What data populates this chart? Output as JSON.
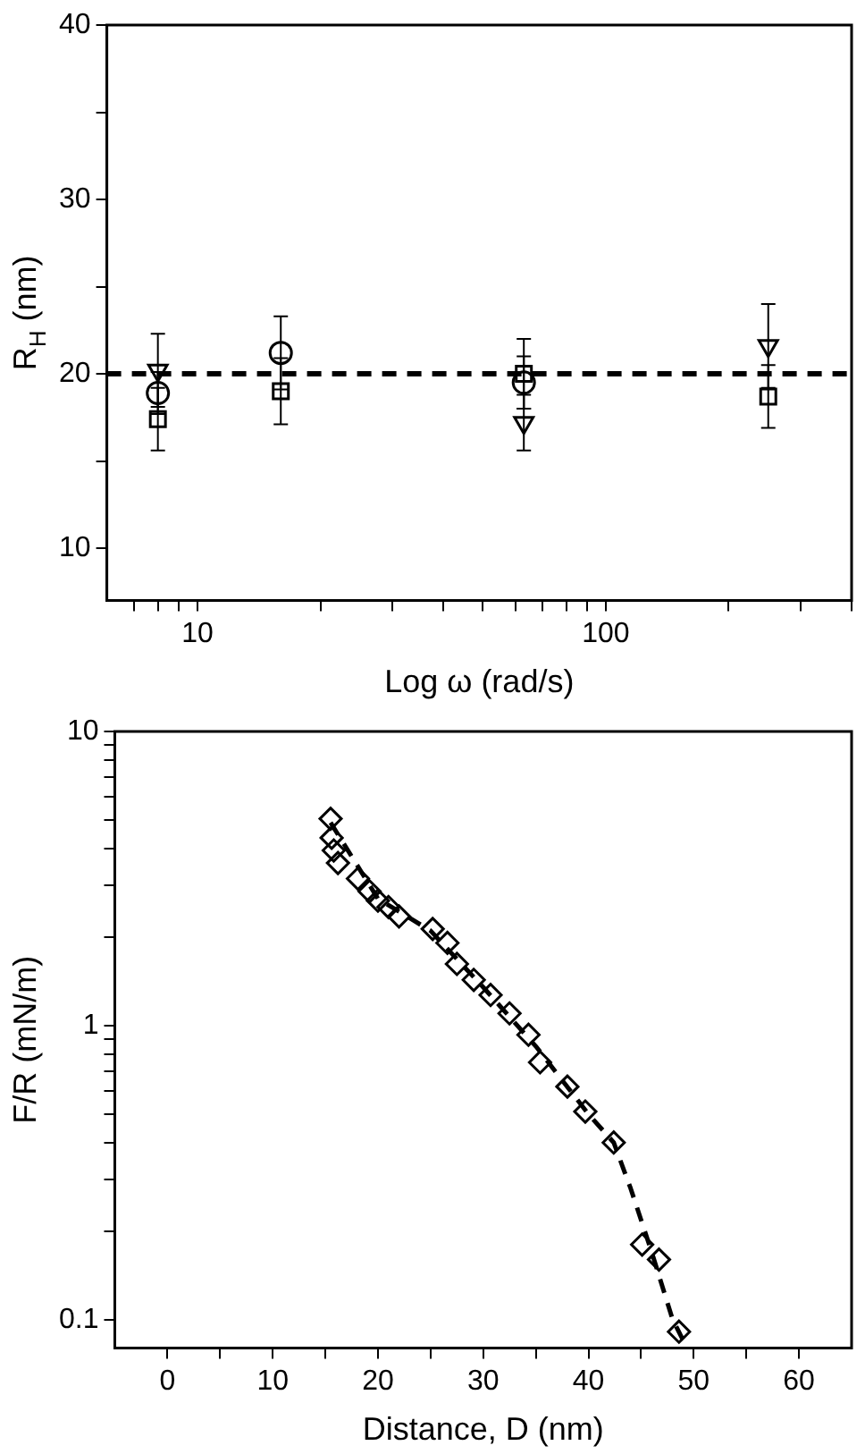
{
  "chart_data": [
    {
      "type": "scatter",
      "xlabel": "Log ω (rad/s)",
      "ylabel": "R$_{H}$ (nm)",
      "log": "x",
      "xlim": [
        6,
        400
      ],
      "ylim": [
        7,
        40
      ],
      "xticks": [
        {
          "value": 7,
          "label": null
        },
        {
          "value": 8,
          "label": null
        },
        {
          "value": 9,
          "label": null
        },
        10,
        {
          "value": 20,
          "label": null
        },
        {
          "value": 30,
          "label": null
        },
        {
          "value": 40,
          "label": null
        },
        {
          "value": 50,
          "label": null
        },
        {
          "value": 60,
          "label": null
        },
        {
          "value": 70,
          "label": null
        },
        {
          "value": 80,
          "label": null
        },
        {
          "value": 90,
          "label": null
        },
        100,
        {
          "value": 200,
          "label": null
        },
        {
          "value": 300,
          "label": null
        },
        {
          "value": 400,
          "label": null
        }
      ],
      "yticks": [
        10,
        {
          "value": 15,
          "label": null
        },
        20,
        {
          "value": 25,
          "label": null
        },
        30,
        {
          "value": 35,
          "label": null
        },
        40
      ],
      "grid": false,
      "legend": false,
      "series": [
        {
          "color": "#000000",
          "marker": "circle",
          "x": [
            8,
            16,
            63
          ],
          "values": [
            18.9,
            21.2,
            19.5
          ],
          "errors": [
            1.2,
            2.1,
            1.5
          ]
        },
        {
          "color": "#000000",
          "marker": "square",
          "x": [
            8,
            16,
            63,
            250
          ],
          "values": [
            17.4,
            19.0,
            20.0,
            18.7
          ],
          "errors": [
            1.8,
            1.9,
            2.0,
            1.8
          ]
        },
        {
          "color": "#000000",
          "marker": "triangle",
          "x": [
            8,
            63,
            250
          ],
          "values": [
            20.2,
            17.2,
            21.6
          ],
          "errors": [
            2.1,
            1.6,
            2.4
          ]
        }
      ],
      "ref_lines": [
        {
          "axis": "y",
          "value": 20,
          "color": "#000000",
          "line_style": "dashed"
        }
      ]
    },
    {
      "type": "scatter",
      "xlabel": "Distance, D (nm)",
      "ylabel": "F/R (mN/m)",
      "log": "y",
      "xlim": [
        -5,
        65
      ],
      "ylim": [
        0.08,
        10
      ],
      "xticks": [
        0,
        {
          "value": 5,
          "label": null
        },
        10,
        {
          "value": 15,
          "label": null
        },
        20,
        {
          "value": 25,
          "label": null
        },
        30,
        {
          "value": 35,
          "label": null
        },
        40,
        {
          "value": 45,
          "label": null
        },
        50,
        {
          "value": 55,
          "label": null
        },
        60
      ],
      "yticks": [
        {
          "value": 0.1,
          "label": "0.1"
        },
        {
          "value": 0.2,
          "label": null
        },
        {
          "value": 0.3,
          "label": null
        },
        {
          "value": 0.4,
          "label": null
        },
        {
          "value": 0.5,
          "label": null
        },
        {
          "value": 0.6,
          "label": null
        },
        {
          "value": 0.7,
          "label": null
        },
        {
          "value": 0.8,
          "label": null
        },
        {
          "value": 0.9,
          "label": null
        },
        1,
        {
          "value": 2,
          "label": null
        },
        {
          "value": 3,
          "label": null
        },
        {
          "value": 4,
          "label": null
        },
        {
          "value": 5,
          "label": null
        },
        {
          "value": 6,
          "label": null
        },
        {
          "value": 7,
          "label": null
        },
        {
          "value": 8,
          "label": null
        },
        {
          "value": 9,
          "label": null
        },
        10
      ],
      "grid": false,
      "legend": false,
      "series": [
        {
          "color": "#000000",
          "marker": "diamond",
          "x": [
            15.5,
            15.6,
            15.8,
            16.2,
            18.1,
            19.2,
            20.0,
            21.0,
            22.0,
            25.2,
            26.6,
            27.5,
            29.1,
            30.7,
            32.5,
            34.3,
            35.4,
            38.0,
            39.7,
            42.4,
            45.1,
            46.7,
            48.6
          ],
          "values": [
            5.05,
            4.35,
            3.94,
            3.57,
            3.16,
            2.86,
            2.66,
            2.53,
            2.35,
            2.13,
            1.91,
            1.62,
            1.43,
            1.27,
            1.1,
            0.93,
            0.75,
            0.62,
            0.51,
            0.4,
            0.18,
            0.16,
            0.091
          ]
        },
        {
          "type": "line",
          "color": "#000000",
          "line_style": "dashed",
          "marker": "none",
          "x": [
            15.5,
            20,
            25,
            30,
            35,
            40,
            42.4,
            44,
            46,
            48,
            49
          ],
          "values": [
            4.9,
            2.7,
            2.1,
            1.35,
            0.85,
            0.5,
            0.4,
            0.28,
            0.17,
            0.1,
            0.085
          ]
        }
      ]
    }
  ]
}
